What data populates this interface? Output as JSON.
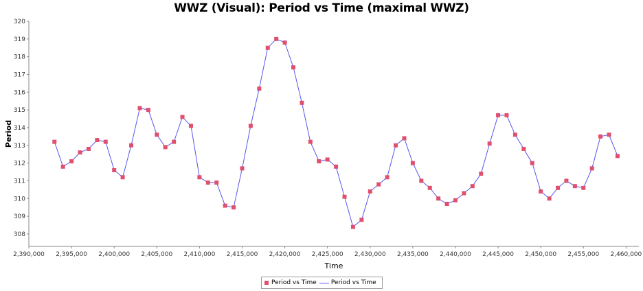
{
  "chart_data": {
    "type": "line",
    "title": "WWZ (Visual): Period vs Time (maximal WWZ)",
    "xlabel": "Time",
    "ylabel": "Period",
    "xlim": [
      2390000,
      2461500
    ],
    "ylim": [
      307.3,
      320
    ],
    "xticks": [
      2390000,
      2395000,
      2400000,
      2405000,
      2410000,
      2415000,
      2420000,
      2425000,
      2430000,
      2435000,
      2440000,
      2445000,
      2450000,
      2455000,
      2460000
    ],
    "xtick_labels": [
      "2,390,000",
      "2,395,000",
      "2,400,000",
      "2,405,000",
      "2,410,000",
      "2,415,000",
      "2,420,000",
      "2,425,000",
      "2,430,000",
      "2,435,000",
      "2,440,000",
      "2,445,000",
      "2,450,000",
      "2,455,000",
      "2,460,000"
    ],
    "yticks": [
      308,
      309,
      310,
      311,
      312,
      313,
      314,
      315,
      316,
      317,
      318,
      319,
      320
    ],
    "ytick_labels": [
      "308",
      "309",
      "310",
      "311",
      "312",
      "313",
      "314",
      "315",
      "316",
      "317",
      "318",
      "319",
      "320"
    ],
    "grid": false,
    "legend_position": "bottom-center",
    "colors": {
      "marker": "#e0506e",
      "line": "#5555ee",
      "axis": "#888888"
    },
    "legend": [
      "Period vs Time",
      "Period vs Time"
    ],
    "series": [
      {
        "name": "Period vs Time",
        "x": [
          2393000,
          2394000,
          2395000,
          2396000,
          2397000,
          2398000,
          2399000,
          2400000,
          2401000,
          2402000,
          2403000,
          2404000,
          2405000,
          2406000,
          2407000,
          2408000,
          2409000,
          2410000,
          2411000,
          2412000,
          2413000,
          2414000,
          2415000,
          2416000,
          2417000,
          2418000,
          2419000,
          2420000,
          2421000,
          2422000,
          2423000,
          2424000,
          2425000,
          2426000,
          2427000,
          2428000,
          2429000,
          2430000,
          2431000,
          2432000,
          2433000,
          2434000,
          2435000,
          2436000,
          2437000,
          2438000,
          2439000,
          2440000,
          2441000,
          2442000,
          2443000,
          2444000,
          2445000,
          2446000,
          2447000,
          2448000,
          2449000,
          2450000,
          2451000,
          2452000,
          2453000,
          2454000,
          2455000,
          2456000,
          2457000,
          2458000,
          2459000
        ],
        "y": [
          313.2,
          311.8,
          312.1,
          312.6,
          312.8,
          313.3,
          313.2,
          311.6,
          311.2,
          313.0,
          315.1,
          315.0,
          313.6,
          312.9,
          313.2,
          314.6,
          314.1,
          311.2,
          310.9,
          310.9,
          309.6,
          309.5,
          311.7,
          314.1,
          316.2,
          318.5,
          319.0,
          318.8,
          317.4,
          315.4,
          313.2,
          312.1,
          312.2,
          311.8,
          310.1,
          308.4,
          308.8,
          310.4,
          310.8,
          311.2,
          313.0,
          313.4,
          312.0,
          311.0,
          310.6,
          310.0,
          309.7,
          309.9,
          310.3,
          310.7,
          311.4,
          313.1,
          314.7,
          314.7,
          313.6,
          312.8,
          312.0,
          310.4,
          310.0,
          310.6,
          311.0,
          310.7,
          310.6,
          311.7,
          313.5,
          313.6,
          312.4
        ]
      }
    ]
  }
}
